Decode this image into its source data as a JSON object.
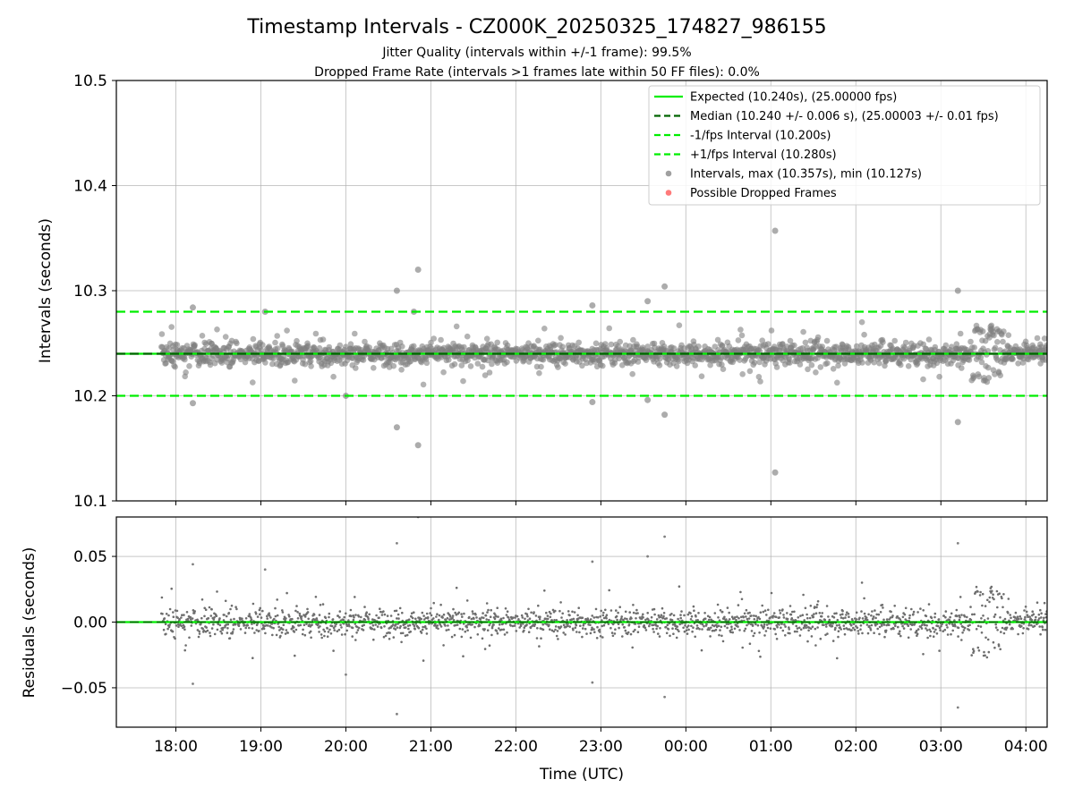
{
  "chart_data": {
    "title": "Timestamp Intervals - CZ000K_20250325_174827_986155",
    "subtitle_1": "Jitter Quality (intervals within +/-1 frame): 99.5%",
    "subtitle_2": "Dropped Frame Rate (intervals >1 frames late within 50 FF files): 0.0%",
    "xlabel": "Time (UTC)",
    "x_ticks": [
      "18:00",
      "19:00",
      "20:00",
      "21:00",
      "22:00",
      "23:00",
      "00:00",
      "01:00",
      "02:00",
      "03:00",
      "04:00"
    ],
    "x_range_hours": [
      17.3,
      28.25
    ],
    "data_x_range_hours": [
      17.83,
      28.25
    ],
    "legend_position": "upper right",
    "panels": [
      {
        "type": "scatter",
        "ylabel": "Intervals (seconds)",
        "ylim": [
          10.1,
          10.5
        ],
        "y_ticks": [
          "10.1",
          "10.2",
          "10.3",
          "10.4",
          "10.5"
        ],
        "grid": true,
        "series": [
          {
            "name": "Expected (10.240s), (25.00000 fps)",
            "kind": "hline",
            "y": 10.24,
            "color": "#00ee00",
            "style": "solid"
          },
          {
            "name": "Median (10.240 +/- 0.006 s), (25.00003 +/- 0.01 fps)",
            "kind": "hline",
            "y": 10.24,
            "color": "#006400",
            "style": "dashed"
          },
          {
            "name": "-1/fps Interval (10.200s)",
            "kind": "hline",
            "y": 10.2,
            "color": "#00ee00",
            "style": "dashed"
          },
          {
            "name": "+1/fps Interval (10.280s)",
            "kind": "hline",
            "y": 10.28,
            "color": "#00ee00",
            "style": "dashed"
          },
          {
            "name": "Intervals, max (10.357s), min (10.127s)",
            "kind": "scatter",
            "color": "#808080",
            "points": [
              [
                20.6,
                10.3
              ],
              [
                20.6,
                10.17
              ],
              [
                20.8,
                10.28
              ],
              [
                20.85,
                10.32
              ],
              [
                20.85,
                10.153
              ],
              [
                18.2,
                10.284
              ],
              [
                18.2,
                10.193
              ],
              [
                22.9,
                10.286
              ],
              [
                22.9,
                10.194
              ],
              [
                23.55,
                10.29
              ],
              [
                23.75,
                10.304
              ],
              [
                23.75,
                10.182
              ],
              [
                23.55,
                10.196
              ],
              [
                25.05,
                10.357
              ],
              [
                25.05,
                10.127
              ],
              [
                27.2,
                10.3
              ],
              [
                27.2,
                10.175
              ],
              [
                19.05,
                10.28
              ],
              [
                20.0,
                10.2
              ]
            ]
          },
          {
            "name": "Possible Dropped Frames",
            "kind": "scatter",
            "color": "#ff4d4d",
            "points": []
          }
        ]
      },
      {
        "type": "scatter",
        "ylabel": "Residuals (seconds)",
        "ylim": [
          -0.08,
          0.08
        ],
        "y_ticks": [
          "−0.05",
          "0.00",
          "0.05"
        ],
        "grid": true,
        "series": [
          {
            "name": "zero line",
            "kind": "hline",
            "y": 0.0,
            "color": "#00ee00"
          },
          {
            "name": "residuals",
            "kind": "scatter",
            "color": "#808080",
            "points": [
              [
                20.6,
                0.06
              ],
              [
                20.6,
                -0.07
              ],
              [
                20.85,
                0.08
              ],
              [
                18.2,
                0.044
              ],
              [
                18.2,
                -0.047
              ],
              [
                22.9,
                0.046
              ],
              [
                22.9,
                -0.046
              ],
              [
                23.55,
                0.05
              ],
              [
                23.75,
                0.065
              ],
              [
                23.75,
                -0.057
              ],
              [
                27.2,
                0.06
              ],
              [
                27.2,
                -0.065
              ],
              [
                20.0,
                -0.04
              ],
              [
                19.05,
                0.04
              ]
            ]
          }
        ]
      }
    ]
  }
}
